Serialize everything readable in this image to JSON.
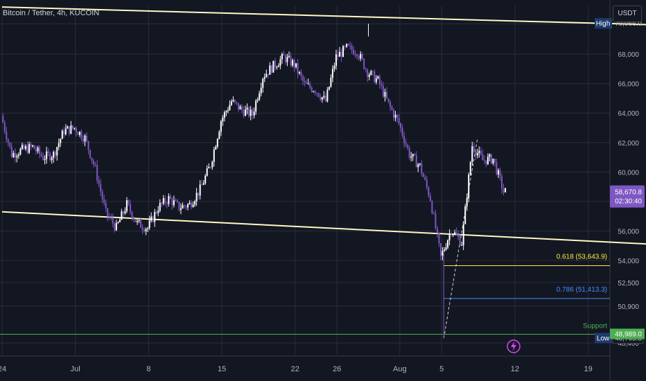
{
  "header": {
    "symbol_title": "Bitcoin / Tether, 4h, KUCOIN",
    "currency_button": "USDT"
  },
  "colors": {
    "background": "#131722",
    "grid": "#2a2e39",
    "candle": "#ffffff",
    "candle_alt": "#7e57c2",
    "trendline": "#fff9c4",
    "fib_0618": "#ffeb3b",
    "fib_0786": "#448aff",
    "support": "#4caf50",
    "price_tag": "#7e57c2",
    "high_low_tag": "#1e3a6e"
  },
  "icons": {
    "alert": "lightning-icon"
  },
  "chart_data": {
    "type": "candlestick",
    "title": "Bitcoin / Tether, 4h, KUCOIN",
    "y_unit": "USDT",
    "ylim": [
      47600,
      71300
    ],
    "y_ticks": [
      48400,
      50900,
      52500,
      54000,
      56000,
      58000,
      60000,
      62000,
      64000,
      66000,
      68000,
      70066
    ],
    "y_tick_labels": [
      "48,400",
      "50,900",
      "52,500",
      "54,000",
      "56,000",
      "58,000",
      "60,000",
      "62,000",
      "64,000",
      "66,000",
      "68,000",
      "70,066.0"
    ],
    "x_tick_labels": [
      "24",
      "Jul",
      "8",
      "15",
      "22",
      "26",
      "Aug",
      "5",
      "12",
      "19"
    ],
    "x_ticks_date": [
      "2024-06-24",
      "2024-07-01",
      "2024-07-08",
      "2024-07-15",
      "2024-07-22",
      "2024-07-26",
      "2024-08-01",
      "2024-08-05",
      "2024-08-12",
      "2024-08-19"
    ],
    "close_path": [
      [
        "2024-06-24",
        63800
      ],
      [
        "2024-06-25",
        61200
      ],
      [
        "2024-06-26",
        61500
      ],
      [
        "2024-06-27",
        61700
      ],
      [
        "2024-06-28",
        61000
      ],
      [
        "2024-06-29",
        61200
      ],
      [
        "2024-06-30",
        62800
      ],
      [
        "2024-07-01",
        63000
      ],
      [
        "2024-07-02",
        62300
      ],
      [
        "2024-07-03",
        60200
      ],
      [
        "2024-07-04",
        57200
      ],
      [
        "2024-07-05",
        56200
      ],
      [
        "2024-07-06",
        57800
      ],
      [
        "2024-07-07",
        56500
      ],
      [
        "2024-07-08",
        56200
      ],
      [
        "2024-07-09",
        57600
      ],
      [
        "2024-07-10",
        58200
      ],
      [
        "2024-07-11",
        57600
      ],
      [
        "2024-07-12",
        57800
      ],
      [
        "2024-07-13",
        58800
      ],
      [
        "2024-07-14",
        60500
      ],
      [
        "2024-07-15",
        63500
      ],
      [
        "2024-07-16",
        64800
      ],
      [
        "2024-07-17",
        64200
      ],
      [
        "2024-07-18",
        63900
      ],
      [
        "2024-07-19",
        66500
      ],
      [
        "2024-07-20",
        67200
      ],
      [
        "2024-07-21",
        67800
      ],
      [
        "2024-07-22",
        67300
      ],
      [
        "2024-07-23",
        65900
      ],
      [
        "2024-07-24",
        65600
      ],
      [
        "2024-07-25",
        64800
      ],
      [
        "2024-07-26",
        67800
      ],
      [
        "2024-07-27",
        68400
      ],
      [
        "2024-07-28",
        68200
      ],
      [
        "2024-07-29",
        66800
      ],
      [
        "2024-07-30",
        66200
      ],
      [
        "2024-07-31",
        64600
      ],
      [
        "2024-08-01",
        63300
      ],
      [
        "2024-08-02",
        61200
      ],
      [
        "2024-08-03",
        60400
      ],
      [
        "2024-08-04",
        58200
      ],
      [
        "2024-08-05",
        54200
      ],
      [
        "2024-08-06",
        56100
      ],
      [
        "2024-08-07",
        55200
      ],
      [
        "2024-08-08",
        61800
      ],
      [
        "2024-08-09",
        60800
      ],
      [
        "2024-08-10",
        60900
      ],
      [
        "2024-08-11",
        58670.8
      ]
    ],
    "trendlines": [
      {
        "name": "upper",
        "from": [
          "2024-06-24",
          71200
        ],
        "to": [
          "2024-08-25",
          70000
        ]
      },
      {
        "name": "lower",
        "from": [
          "2024-06-24",
          57300
        ],
        "to": [
          "2024-08-25",
          55100
        ]
      }
    ],
    "fib_levels": [
      {
        "label": "0.618 (53,643.9)",
        "value": 53643.9
      },
      {
        "label": "0.786 (51,413.3)",
        "value": 51413.3
      }
    ],
    "support": {
      "label": "Support",
      "value": 48989.0,
      "tag": "48,989.0"
    },
    "high": {
      "label": "High",
      "value": 70066.0,
      "tag": "70,066.0"
    },
    "low": {
      "label": "Low",
      "value": 48705.8,
      "tag": "48,705.8"
    },
    "last_price": {
      "value": 58670.8,
      "tag": "58,670.8",
      "countdown": "02:30:40"
    },
    "grid": true,
    "legend": "none"
  }
}
